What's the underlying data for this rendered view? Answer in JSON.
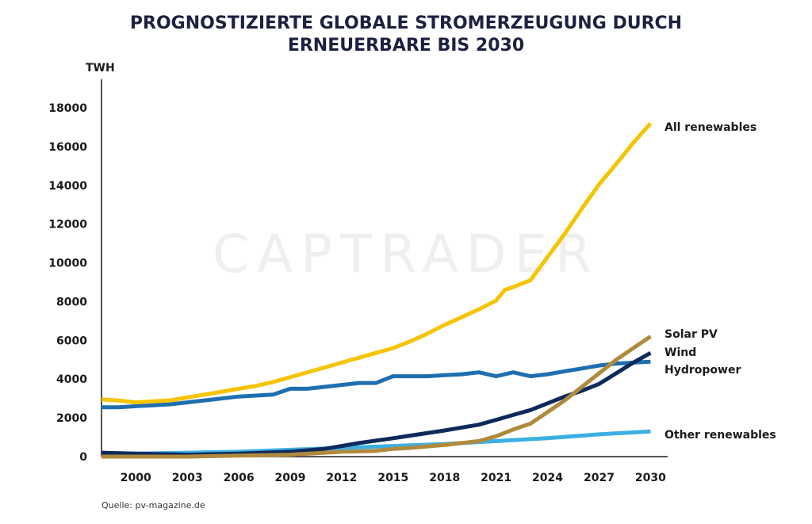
{
  "chart_data": {
    "type": "line",
    "title_lines": [
      "PROGNOSTIZIERTE GLOBALE STROMERZEUGUNG DURCH",
      "ERNEUERBARE BIS 2030"
    ],
    "ylabel": "TWH",
    "ylim": [
      0,
      18000
    ],
    "xlim": [
      1998,
      2031
    ],
    "y_ticks": [
      0,
      2000,
      4000,
      6000,
      8000,
      10000,
      12000,
      14000,
      16000,
      18000
    ],
    "x_ticks": [
      2000,
      2003,
      2006,
      2009,
      2012,
      2015,
      2018,
      2021,
      2024,
      2027,
      2030
    ],
    "watermark": "CAPTRADER",
    "source": "Quelle: pv-magazine.de",
    "series": [
      {
        "name": "Hydropower",
        "color": "#1f6fb0",
        "x": [
          1998,
          1999,
          2000,
          2001,
          2002,
          2003,
          2004,
          2005,
          2006,
          2007,
          2008,
          2009,
          2010,
          2011,
          2012,
          2013,
          2014,
          2015,
          2016,
          2017,
          2018,
          2019,
          2020,
          2021,
          2022,
          2023,
          2024,
          2025,
          2026,
          2027,
          2028,
          2029,
          2030
        ],
        "values": [
          2550,
          2550,
          2600,
          2650,
          2700,
          2800,
          2900,
          3000,
          3100,
          3150,
          3200,
          3500,
          3500,
          3600,
          3700,
          3800,
          3800,
          4150,
          4150,
          4150,
          4200,
          4250,
          4350,
          4150,
          4350,
          4150,
          4250,
          4400,
          4550,
          4700,
          4800,
          4850,
          4900
        ]
      },
      {
        "name": "Other renewables",
        "color": "#3bb0e2",
        "x": [
          1998,
          2000,
          2003,
          2006,
          2009,
          2012,
          2015,
          2018,
          2021,
          2024,
          2027,
          2030
        ],
        "values": [
          150,
          150,
          200,
          250,
          350,
          450,
          550,
          650,
          800,
          950,
          1150,
          1300
        ]
      },
      {
        "name": "Wind",
        "color": "#0e2a5c",
        "x": [
          1998,
          2000,
          2003,
          2006,
          2009,
          2011,
          2012,
          2013,
          2015,
          2018,
          2020,
          2021,
          2022,
          2023,
          2024,
          2025,
          2026,
          2027,
          2028,
          2029,
          2030
        ],
        "values": [
          200,
          150,
          100,
          150,
          250,
          400,
          550,
          700,
          950,
          1350,
          1650,
          1900,
          2150,
          2400,
          2750,
          3100,
          3400,
          3750,
          4300,
          4850,
          5350
        ]
      },
      {
        "name": "Solar PV",
        "color": "#b08a3c",
        "x": [
          1998,
          2000,
          2003,
          2006,
          2009,
          2011,
          2012,
          2014,
          2015,
          2016,
          2018,
          2020,
          2021,
          2022,
          2023,
          2024,
          2025,
          2026,
          2027,
          2028,
          2029,
          2030
        ],
        "values": [
          0,
          0,
          0,
          50,
          100,
          200,
          250,
          300,
          400,
          450,
          600,
          800,
          1050,
          1400,
          1700,
          2300,
          2900,
          3600,
          4300,
          5000,
          5600,
          6200
        ]
      },
      {
        "name": "All renewables",
        "color": "#f5c400",
        "x": [
          1998,
          1999,
          2000,
          2001,
          2002,
          2003,
          2004,
          2005,
          2006,
          2007,
          2008,
          2009,
          2010,
          2011,
          2012,
          2013,
          2014,
          2015,
          2016,
          2017,
          2018,
          2019,
          2020,
          2021,
          2021.5,
          2022,
          2023,
          2024,
          2025,
          2026,
          2027,
          2028,
          2029,
          2030
        ],
        "values": [
          2950,
          2900,
          2800,
          2850,
          2900,
          3050,
          3200,
          3350,
          3500,
          3650,
          3850,
          4100,
          4350,
          4600,
          4850,
          5100,
          5350,
          5600,
          5950,
          6350,
          6800,
          7200,
          7600,
          8050,
          8600,
          8750,
          9100,
          10300,
          11500,
          12800,
          14050,
          15100,
          16200,
          17200
        ]
      }
    ]
  }
}
